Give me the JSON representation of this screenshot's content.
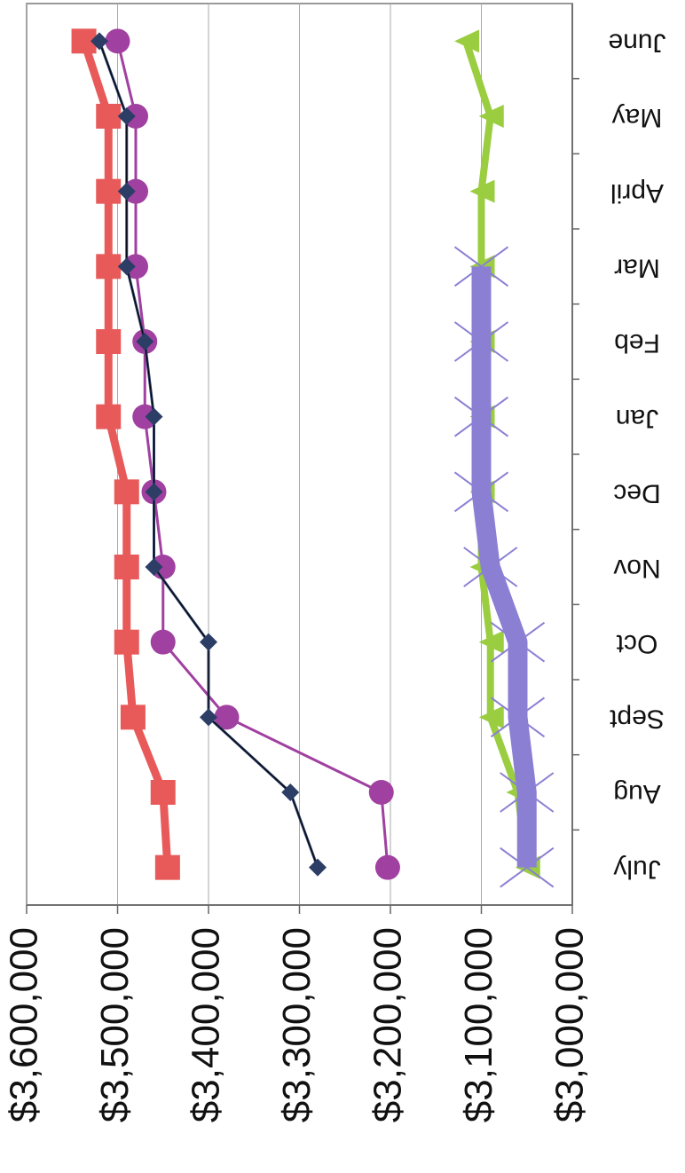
{
  "chart_data": {
    "type": "line",
    "categories": [
      "July",
      "Aug",
      "Sept",
      "Oct",
      "Nov",
      "Dec",
      "Jan",
      "Feb",
      "Mar",
      "April",
      "May",
      "June"
    ],
    "ylim": [
      3000000,
      3600000
    ],
    "yticks": [
      {
        "value": 3000000,
        "label": "$3,000,000"
      },
      {
        "value": 3100000,
        "label": "$3,100,000"
      },
      {
        "value": 3200000,
        "label": "$3,200,000"
      },
      {
        "value": 3300000,
        "label": "$3,300,000"
      },
      {
        "value": 3400000,
        "label": "$3,400,000"
      },
      {
        "value": 3500000,
        "label": "$3,500,000"
      },
      {
        "value": 3600000,
        "label": "$3,600,000"
      }
    ],
    "grid": true,
    "series": [
      {
        "color": "#e85a5a",
        "marker": "square",
        "values": [
          3445000,
          3450000,
          3483000,
          3490000,
          3490000,
          3490000,
          3510000,
          3510000,
          3510000,
          3510000,
          3510000,
          3537000
        ]
      },
      {
        "color": "#a040a0",
        "marker": "circle",
        "values": [
          3203000,
          3210000,
          3380000,
          3450000,
          3450000,
          3460000,
          3470000,
          3470000,
          3480000,
          3480000,
          3480000,
          3500000
        ]
      },
      {
        "color": "#2c3e66",
        "marker": "diamond",
        "values": [
          3280000,
          3310000,
          3400000,
          3400000,
          3460000,
          3460000,
          3460000,
          3470000,
          3490000,
          3490000,
          3490000,
          3520000
        ]
      },
      {
        "color": "#9acd40",
        "marker": "triangle",
        "values": [
          3050000,
          3060000,
          3090000,
          3090000,
          3100000,
          3100000,
          3100000,
          3100000,
          3100000,
          3100000,
          3090000,
          3117000
        ]
      },
      {
        "color": "#8b7fd4",
        "marker": "x",
        "values": [
          3050000,
          3050000,
          3060000,
          3060000,
          3090000,
          3100000,
          3100000,
          3100000,
          3100000,
          null,
          null,
          null
        ]
      }
    ]
  }
}
